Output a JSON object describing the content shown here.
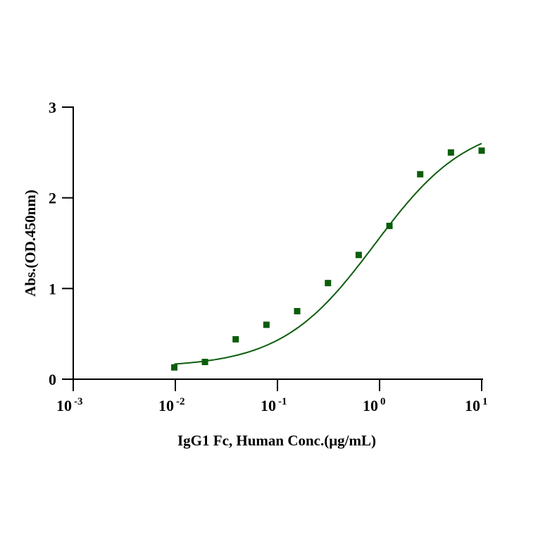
{
  "chart_data": {
    "type": "scatter",
    "title": "",
    "xlabel": "IgG1 Fc, Human Conc.(μg/mL)",
    "ylabel": "Abs.(OD.450nm)",
    "xscale": "log",
    "xlim": [
      0.001,
      10
    ],
    "ylim": [
      0,
      3
    ],
    "xticks": [
      {
        "base": "10",
        "exp": "-3",
        "value": 0.001
      },
      {
        "base": "10",
        "exp": "-2",
        "value": 0.01
      },
      {
        "base": "10",
        "exp": "-1",
        "value": 0.1
      },
      {
        "base": "10",
        "exp": "0",
        "value": 1
      },
      {
        "base": "10",
        "exp": "1",
        "value": 10
      }
    ],
    "yticks": [
      "0",
      "1",
      "2",
      "3"
    ],
    "grid": false,
    "color": "#0b5e0b",
    "x": [
      0.00977,
      0.0195,
      0.039,
      0.078,
      0.156,
      0.3125,
      0.625,
      1.25,
      2.5,
      5,
      10
    ],
    "y": [
      0.13,
      0.19,
      0.44,
      0.6,
      0.75,
      1.06,
      1.37,
      1.69,
      2.26,
      2.5,
      2.52
    ],
    "fit": {
      "model": "4PL",
      "bottom": 0.13,
      "top": 2.85,
      "ec50": 0.9,
      "hill": 0.95,
      "range": [
        0.00977,
        10
      ]
    }
  }
}
